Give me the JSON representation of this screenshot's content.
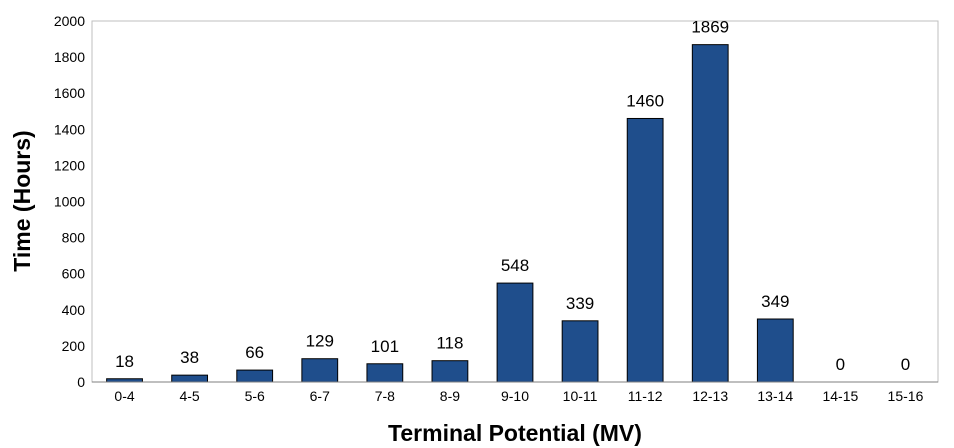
{
  "chart_data": {
    "type": "bar",
    "title": "",
    "xlabel": "Terminal Potential (MV)",
    "ylabel": "Time (Hours)",
    "ylim": [
      0,
      2000
    ],
    "yticks": [
      0,
      200,
      400,
      600,
      800,
      1000,
      1200,
      1400,
      1600,
      1800,
      2000
    ],
    "grid": false,
    "legend": "none",
    "categories": [
      "0-4",
      "4-5",
      "5-6",
      "6-7",
      "7-8",
      "8-9",
      "9-10",
      "10-11",
      "11-12",
      "12-13",
      "13-14",
      "14-15",
      "15-16"
    ],
    "values": [
      18,
      38,
      66,
      129,
      101,
      118,
      548,
      339,
      1460,
      1869,
      349,
      0,
      0
    ],
    "bar_color": "#1f4e8c",
    "bar_edge_color": "#000000"
  }
}
